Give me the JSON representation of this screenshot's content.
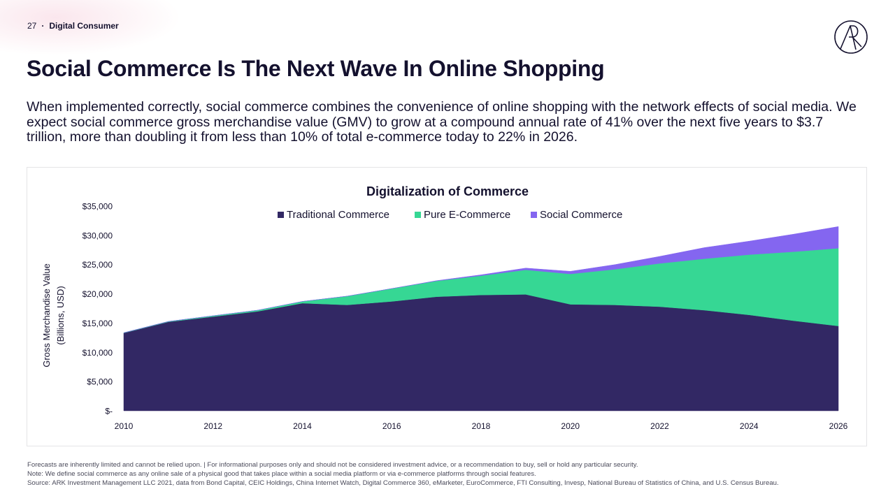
{
  "header": {
    "page_number": "27",
    "separator": "·",
    "section": "Digital Consumer"
  },
  "logo": {
    "icon": "ark-logo-icon"
  },
  "title": "Social Commerce Is The Next Wave In Online Shopping",
  "subtitle": "When implemented correctly, social commerce combines the convenience of online shopping with the network effects of social media. We expect social commerce gross merchandise value (GMV) to grow at a compound annual rate of 41% over the next five years to $3.7 trillion, more than doubling it from less than 10% of total e-commerce today to 22% in 2026.",
  "colors": {
    "traditional": "#322864",
    "ecommerce": "#36d794",
    "social": "#8466f0",
    "text": "#14112e"
  },
  "chart_data": {
    "type": "area",
    "stacked": true,
    "title": "Digitalization of Commerce",
    "xlabel": "",
    "ylabel": "Gross Merchandise Value",
    "ylabel_line2": "(Billions, USD)",
    "ylim": [
      0,
      35000
    ],
    "yticks": [
      0,
      5000,
      10000,
      15000,
      20000,
      25000,
      30000,
      35000
    ],
    "ytick_labels": [
      "$-",
      "$5,000",
      "$10,000",
      "$15,000",
      "$20,000",
      "$25,000",
      "$30,000",
      "$35,000"
    ],
    "xlim": [
      2010,
      2026
    ],
    "xticks": [
      "2010",
      "2012",
      "2014",
      "2016",
      "2018",
      "2020",
      "2022",
      "2024",
      "2026"
    ],
    "legend_position": "top-center",
    "x": [
      2010,
      2011,
      2012,
      2013,
      2014,
      2015,
      2016,
      2017,
      2018,
      2019,
      2020,
      2021,
      2022,
      2023,
      2024,
      2025,
      2026
    ],
    "series": [
      {
        "name": "Traditional Commerce",
        "values": [
          13300,
          15200,
          16100,
          17000,
          18400,
          18100,
          18700,
          19500,
          19800,
          19900,
          18200,
          18100,
          17800,
          17200,
          16400,
          15400,
          14500
        ]
      },
      {
        "name": "Pure E-Commerce",
        "values": [
          50,
          80,
          150,
          200,
          300,
          1500,
          2200,
          2700,
          3300,
          4200,
          5200,
          6100,
          7400,
          8800,
          10300,
          11800,
          13300
        ]
      },
      {
        "name": "Social Commerce",
        "values": [
          0,
          0,
          0,
          0,
          0,
          0,
          0,
          50,
          150,
          300,
          450,
          800,
          1200,
          1900,
          2300,
          3000,
          3700
        ]
      }
    ]
  },
  "footer": {
    "line1": "Forecasts are inherently limited and cannot be relied upon. | For informational purposes only and should not be considered investment advice, or a recommendation to buy, sell or hold any particular security.",
    "line2": "Note: We define social commerce as any online sale of a physical good that takes place within a social media platform or via e-commerce platforms through social features.",
    "line3": "Source: ARK Investment Management LLC  2021, data from Bond Capital, CEIC Holdings, China Internet Watch, Digital Commerce 360, eMarketer, EuroCommerce, FTI Consulting, Invesp, National Bureau of Statistics of China, and U.S. Census Bureau."
  }
}
